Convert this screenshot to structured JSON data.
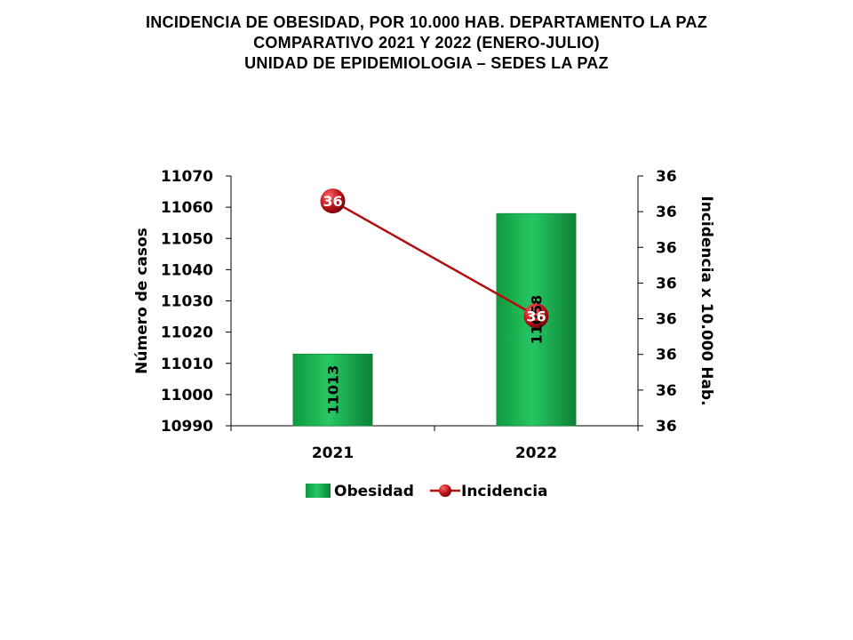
{
  "title_lines": [
    "INCIDENCIA DE OBESIDAD, POR 10.000 HAB. DEPARTAMENTO LA PAZ",
    "COMPARATIVO 2021 Y 2022 (ENERO-JULIO)",
    "UNIDAD DE EPIDEMIOLOGIA – SEDES LA PAZ"
  ],
  "colors": {
    "bar": "#1db954",
    "bar_dark": "#0d8a3a",
    "line": "#b01010",
    "marker": "#c4161c",
    "axis": "#000000"
  },
  "chart_data": {
    "type": "bar",
    "categories": [
      "2021",
      "2022"
    ],
    "ylabel": "Número de casos",
    "y2label": "Incidencia x 10.000 Hab.",
    "ylim": [
      10990,
      11070
    ],
    "yticks": [
      10990,
      11000,
      11010,
      11020,
      11030,
      11040,
      11050,
      11060,
      11070
    ],
    "y2ticks": [
      "36",
      "36",
      "36",
      "36",
      "36",
      "36",
      "36",
      "36"
    ],
    "legend_position": "bottom",
    "series": [
      {
        "name": "Obesidad",
        "type": "bar",
        "axis": "left",
        "values": [
          11013,
          11058
        ],
        "labels": [
          "11013",
          "11058"
        ]
      },
      {
        "name": "Incidencia",
        "type": "line",
        "axis": "right",
        "values": [
          36.45,
          36.22
        ],
        "labels": [
          "36",
          "36"
        ]
      }
    ]
  }
}
